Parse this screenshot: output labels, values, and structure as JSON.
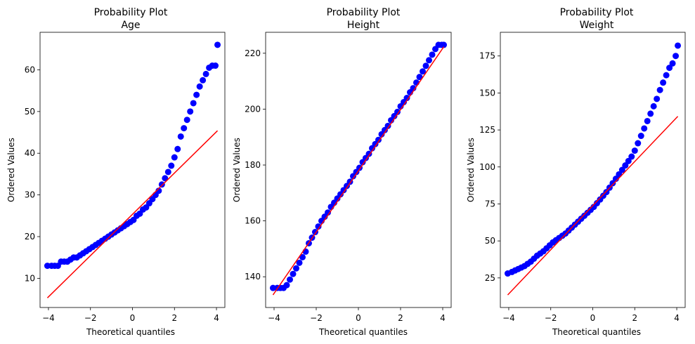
{
  "chart_data": [
    {
      "type": "scatter",
      "title_line1": "Probability Plot",
      "title_line2": "Age",
      "xlabel": "Theoretical quantiles",
      "ylabel": "Ordered Values",
      "xlim": [
        -4.4,
        4.4
      ],
      "ylim": [
        3,
        69
      ],
      "xticks": [
        -4,
        -2,
        0,
        2,
        4
      ],
      "yticks": [
        10,
        20,
        30,
        40,
        50,
        60
      ],
      "fit_line": {
        "x": [
          -4.05,
          4.05
        ],
        "y": [
          5.3,
          45.4
        ]
      },
      "points": {
        "x": [
          -4.05,
          -3.85,
          -3.7,
          -3.55,
          -3.4,
          -3.25,
          -3.1,
          -2.95,
          -2.8,
          -2.65,
          -2.5,
          -2.35,
          -2.2,
          -2.05,
          -1.9,
          -1.75,
          -1.6,
          -1.45,
          -1.3,
          -1.15,
          -1.0,
          -0.85,
          -0.7,
          -0.55,
          -0.4,
          -0.25,
          -0.1,
          0.05,
          0.2,
          0.35,
          0.5,
          0.65,
          0.8,
          0.95,
          1.1,
          1.25,
          1.4,
          1.55,
          1.7,
          1.85,
          2.0,
          2.15,
          2.3,
          2.45,
          2.6,
          2.75,
          2.9,
          3.05,
          3.2,
          3.35,
          3.5,
          3.65,
          3.8,
          3.95,
          4.05
        ],
        "y": [
          13,
          13,
          13,
          13,
          14,
          14,
          14,
          14.5,
          15,
          15,
          15.5,
          16,
          16.5,
          17,
          17.5,
          18,
          18.5,
          19,
          19.5,
          20,
          20.5,
          21,
          21.5,
          22,
          22.5,
          23,
          23.5,
          24,
          25,
          25.5,
          26.5,
          27,
          28,
          29,
          30,
          31,
          32.5,
          34,
          35.5,
          37,
          39,
          41,
          44,
          46,
          48,
          50,
          52,
          54,
          56,
          57.5,
          59,
          60.5,
          61,
          61,
          66
        ]
      }
    },
    {
      "type": "scatter",
      "title_line1": "Probability Plot",
      "title_line2": "Height",
      "xlabel": "Theoretical quantiles",
      "ylabel": "Ordered Values",
      "xlim": [
        -4.4,
        4.4
      ],
      "ylim": [
        129,
        227.5
      ],
      "xticks": [
        -4,
        -2,
        0,
        2,
        4
      ],
      "yticks": [
        140,
        160,
        180,
        200,
        220
      ],
      "fit_line": {
        "x": [
          -4.05,
          4.05
        ],
        "y": [
          133.5,
          222.3
        ]
      },
      "points": {
        "x": [
          -4.05,
          -3.85,
          -3.7,
          -3.55,
          -3.4,
          -3.25,
          -3.1,
          -2.95,
          -2.8,
          -2.65,
          -2.5,
          -2.35,
          -2.2,
          -2.05,
          -1.9,
          -1.75,
          -1.6,
          -1.45,
          -1.3,
          -1.15,
          -1.0,
          -0.85,
          -0.7,
          -0.55,
          -0.4,
          -0.25,
          -0.1,
          0.05,
          0.2,
          0.35,
          0.5,
          0.65,
          0.8,
          0.95,
          1.1,
          1.25,
          1.4,
          1.55,
          1.7,
          1.85,
          2.0,
          2.15,
          2.3,
          2.45,
          2.6,
          2.75,
          2.9,
          3.05,
          3.2,
          3.35,
          3.5,
          3.65,
          3.8,
          3.95,
          4.05
        ],
        "y": [
          136,
          136,
          136,
          136,
          137,
          139,
          141,
          143,
          145,
          147,
          149,
          152,
          154,
          156,
          158,
          160,
          161.5,
          163,
          165,
          166.5,
          168,
          169.5,
          171,
          172.5,
          174,
          176,
          177.5,
          179,
          181,
          182.5,
          184,
          186,
          187.5,
          189,
          191,
          192.5,
          194,
          196,
          197.5,
          199,
          201,
          202.5,
          204,
          206,
          207.5,
          209.5,
          211.5,
          213.5,
          215.5,
          217.5,
          219.5,
          221.5,
          223,
          223,
          223
        ]
      }
    },
    {
      "type": "scatter",
      "title_line1": "Probability Plot",
      "title_line2": "Weight",
      "xlabel": "Theoretical quantiles",
      "ylabel": "Ordered Values",
      "xlim": [
        -4.4,
        4.4
      ],
      "ylim": [
        5,
        191
      ],
      "xticks": [
        -4,
        -2,
        0,
        2,
        4
      ],
      "yticks": [
        25,
        50,
        75,
        100,
        125,
        150,
        175
      ],
      "fit_line": {
        "x": [
          -4.05,
          4.05
        ],
        "y": [
          13.5,
          134.2
        ]
      },
      "points": {
        "x": [
          -4.05,
          -3.85,
          -3.7,
          -3.55,
          -3.4,
          -3.25,
          -3.1,
          -2.95,
          -2.8,
          -2.65,
          -2.5,
          -2.35,
          -2.2,
          -2.05,
          -1.9,
          -1.75,
          -1.6,
          -1.45,
          -1.3,
          -1.15,
          -1.0,
          -0.85,
          -0.7,
          -0.55,
          -0.4,
          -0.25,
          -0.1,
          0.05,
          0.2,
          0.35,
          0.5,
          0.65,
          0.8,
          0.95,
          1.1,
          1.25,
          1.4,
          1.55,
          1.7,
          1.85,
          2.0,
          2.15,
          2.3,
          2.45,
          2.6,
          2.75,
          2.9,
          3.05,
          3.2,
          3.35,
          3.5,
          3.65,
          3.8,
          3.95,
          4.05
        ],
        "y": [
          28,
          29,
          30,
          31,
          32,
          33,
          34.5,
          36,
          38,
          40,
          41.5,
          43,
          45,
          47,
          49,
          50.5,
          52,
          53.5,
          55,
          57,
          59,
          61,
          63,
          65,
          67,
          69,
          71,
          73,
          75.5,
          78,
          80.5,
          83,
          86,
          89,
          92,
          95,
          98,
          101,
          104,
          107,
          111,
          116,
          121,
          126,
          131,
          136,
          141,
          146,
          152,
          157,
          162,
          167,
          170,
          175,
          182
        ]
      }
    }
  ]
}
